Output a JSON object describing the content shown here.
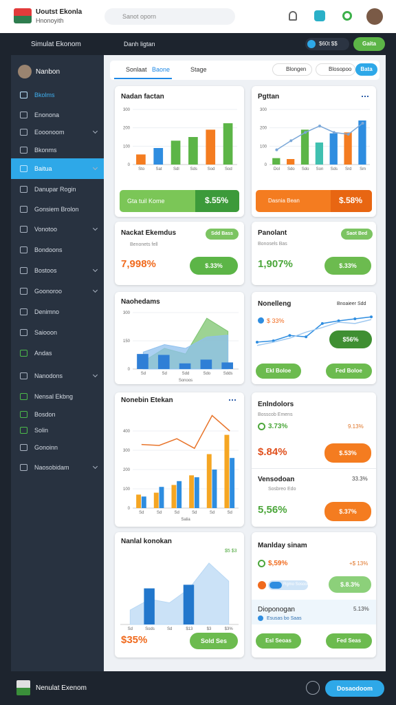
{
  "header": {
    "title": "Uoutst Ekonla",
    "subtitle": "Hnonoyith",
    "search": "Sanot oporn"
  },
  "topbar": {
    "sidebar_title": "Simulat Ekonom",
    "page_title": "Danh ligtan",
    "balance": "$60t $$",
    "button": "Gaita"
  },
  "sidebar": {
    "user": "Nanbon",
    "items": [
      {
        "label": "Bkolms",
        "chevron": false,
        "link": true
      },
      {
        "label": "Enonona",
        "chevron": false
      },
      {
        "label": "Eooonoom",
        "chevron": true
      },
      {
        "label": "Bkonms",
        "chevron": false
      },
      {
        "label": "Baitua",
        "chevron": true,
        "active": true
      },
      {
        "label": "Danupar Rogin",
        "chevron": false
      },
      {
        "label": "Gonsiem Brolon",
        "chevron": false
      },
      {
        "label": "Vonotoo",
        "chevron": true
      },
      {
        "label": "Bondoons",
        "chevron": false
      },
      {
        "label": "Bostoos",
        "chevron": true
      },
      {
        "label": "Goonoroo",
        "chevron": true
      },
      {
        "label": "Denimno",
        "chevron": false
      },
      {
        "label": "Saiooon",
        "chevron": false
      },
      {
        "label": "Andas",
        "chevron": false,
        "icon": "green"
      },
      {
        "label": "Nanodons",
        "chevron": true
      },
      {
        "label": "Nensal Ekbng",
        "chevron": false,
        "icon": "green"
      },
      {
        "label": "Bosdon",
        "chevron": false,
        "icon": "green"
      },
      {
        "label": "Solin",
        "chevron": false,
        "icon": "green"
      },
      {
        "label": "Gonoinn",
        "chevron": false
      },
      {
        "label": "Naosobidam",
        "chevron": true
      }
    ]
  },
  "tabs": {
    "items": [
      "Sonlaat",
      "Baone",
      "Stage"
    ],
    "filters": [
      "Blongen",
      "Blosopoo"
    ],
    "button": "Bata"
  },
  "cards": [
    {
      "title": "Nadan factan",
      "footer_label": "Gta tuil Kome",
      "footer_value": "$.55%",
      "chart": {
        "type": "bar",
        "ylim": [
          0,
          300
        ],
        "yticks": [
          0,
          100,
          200,
          300
        ],
        "categories": [
          "Sto",
          "Sat",
          "Sdl",
          "Sds",
          "Sod",
          "Sod"
        ],
        "series": [
          {
            "colors": [
              "#f47c20",
              "#2e8de0",
              "#5cb547",
              "#5cb547",
              "#f47c20",
              "#5cb547"
            ],
            "values": [
              55,
              90,
              130,
              150,
              190,
              225
            ]
          }
        ]
      }
    },
    {
      "title": "Pgttan",
      "footer_label": "Dasnia Bean",
      "footer_value": "$.58%",
      "chart": {
        "type": "combo",
        "ylim": [
          0,
          300
        ],
        "yticks": [
          0,
          100,
          200,
          300
        ],
        "categories": [
          "Dol",
          "Sdo",
          "Sdo",
          "Son",
          "Sds",
          "Srd",
          "Sm"
        ],
        "series": [
          {
            "type": "bar",
            "colors": [
              "#5cb547",
              "#f47c20",
              "#5cb547",
              "#40c0b0",
              "#2e8de0",
              "#f47c20",
              "#2e8de0"
            ],
            "values": [
              35,
              30,
              190,
              120,
              170,
              175,
              240
            ]
          },
          {
            "type": "line",
            "color": "#7aa7d8",
            "markers": true,
            "values": [
              80,
              130,
              175,
              210,
              175,
              165,
              225
            ]
          }
        ]
      }
    },
    {
      "title": "Nackat Ekemdus",
      "badge": "Sdd Bass",
      "subtitle": "Benonets fell",
      "big": "7,998%",
      "button": "$.33%"
    },
    {
      "title": "Panolant",
      "badge": "Saot Bed",
      "subtitle": "Bonosels Bas",
      "big": "1,907%",
      "button": "$.33%"
    },
    {
      "title": "Naohedams",
      "chart": {
        "type": "combo",
        "ylim": [
          0,
          300
        ],
        "yticks": [
          0,
          150,
          300
        ],
        "categories": [
          "Sd",
          "Sd",
          "Sdd",
          "Sdo",
          "Sdds"
        ],
        "xlabel": "Sonoos",
        "series": [
          {
            "type": "area",
            "color": "#7cc46f",
            "values": [
              40,
              110,
              80,
              270,
              200
            ]
          },
          {
            "type": "area",
            "color": "#8fc0ee",
            "values": [
              90,
              130,
              110,
              170,
              180
            ]
          },
          {
            "type": "bar",
            "color": "#2f7fd6",
            "values": [
              80,
              75,
              30,
              50,
              35
            ]
          }
        ]
      }
    },
    {
      "title": "Nonelleng",
      "legend": "Bnoaieer Sdd",
      "subtitle": "$ 33%",
      "button": "$56%",
      "buttons": [
        "Ekl Boloe",
        "Fed Boloe"
      ],
      "chart": {
        "type": "line",
        "series": [
          {
            "color": "#2e8de0",
            "markers": true,
            "values": [
              20,
              22,
              30,
              28,
              48,
              52,
              55,
              58
            ]
          },
          {
            "color": "#9ec8f0",
            "values": [
              15,
              20,
              26,
              35,
              42,
              50,
              48,
              54
            ]
          }
        ]
      }
    },
    {
      "title": "Nonebin Etekan",
      "chart": {
        "type": "combo",
        "ylim": [
          0,
          500
        ],
        "yticks": [
          0,
          100,
          200,
          300,
          400
        ],
        "categories": [
          "Sd",
          "Sd",
          "Sd",
          "Sd",
          "Sd",
          "Sd"
        ],
        "xlabel": "Salia",
        "series": [
          {
            "type": "bar",
            "color": "#f5a623",
            "values": [
              70,
              80,
              120,
              170,
              280,
              380
            ]
          },
          {
            "type": "bar",
            "color": "#2e8de0",
            "values": [
              60,
              110,
              140,
              160,
              200,
              260
            ]
          },
          {
            "type": "line",
            "color": "#e8742a",
            "values": [
              330,
              325,
              360,
              310,
              480,
              400
            ]
          }
        ]
      }
    },
    {
      "title": "Enlndolors",
      "subtitle": "Bosscob Emens",
      "stat": "3.73%",
      "stat_right": "9.13%",
      "big": "$.84%",
      "button": "$.53%",
      "title2": "Vensodoan",
      "stat2_right": "33.3%",
      "subtitle2": "Sosbreo Edo",
      "big2": "5,56%",
      "button2": "$.37%"
    },
    {
      "title": "Nanlal konokan",
      "tag": "$5 $3",
      "big": "$35%",
      "button": "Sold Ses",
      "chart": {
        "type": "combo",
        "categories": [
          "Sd",
          "Sods",
          "Sd",
          "$13",
          "$3",
          "$3%"
        ],
        "series": [
          {
            "type": "area",
            "color": "#b9d8f4",
            "values": [
              40,
              70,
              60,
              100,
              170,
              120
            ]
          },
          {
            "type": "bar",
            "color": "#2277cc",
            "values": [
              null,
              100,
              null,
              110,
              null,
              null
            ]
          }
        ]
      }
    },
    {
      "title": "Manlday sinam",
      "stat": "$,59%",
      "stat_right": "+$ 13%",
      "pill": "Rgmo Sosoooss",
      "button": "$.8.3%",
      "title2": "Dioponogan",
      "stat2_right": "5.13%",
      "subtitle2": "Esusas bo Saas",
      "buttons": [
        "Esl Seoas",
        "Fed Seas"
      ]
    }
  ],
  "footer": {
    "title": "Nenulat Exenom",
    "button": "Dosaodoom"
  }
}
